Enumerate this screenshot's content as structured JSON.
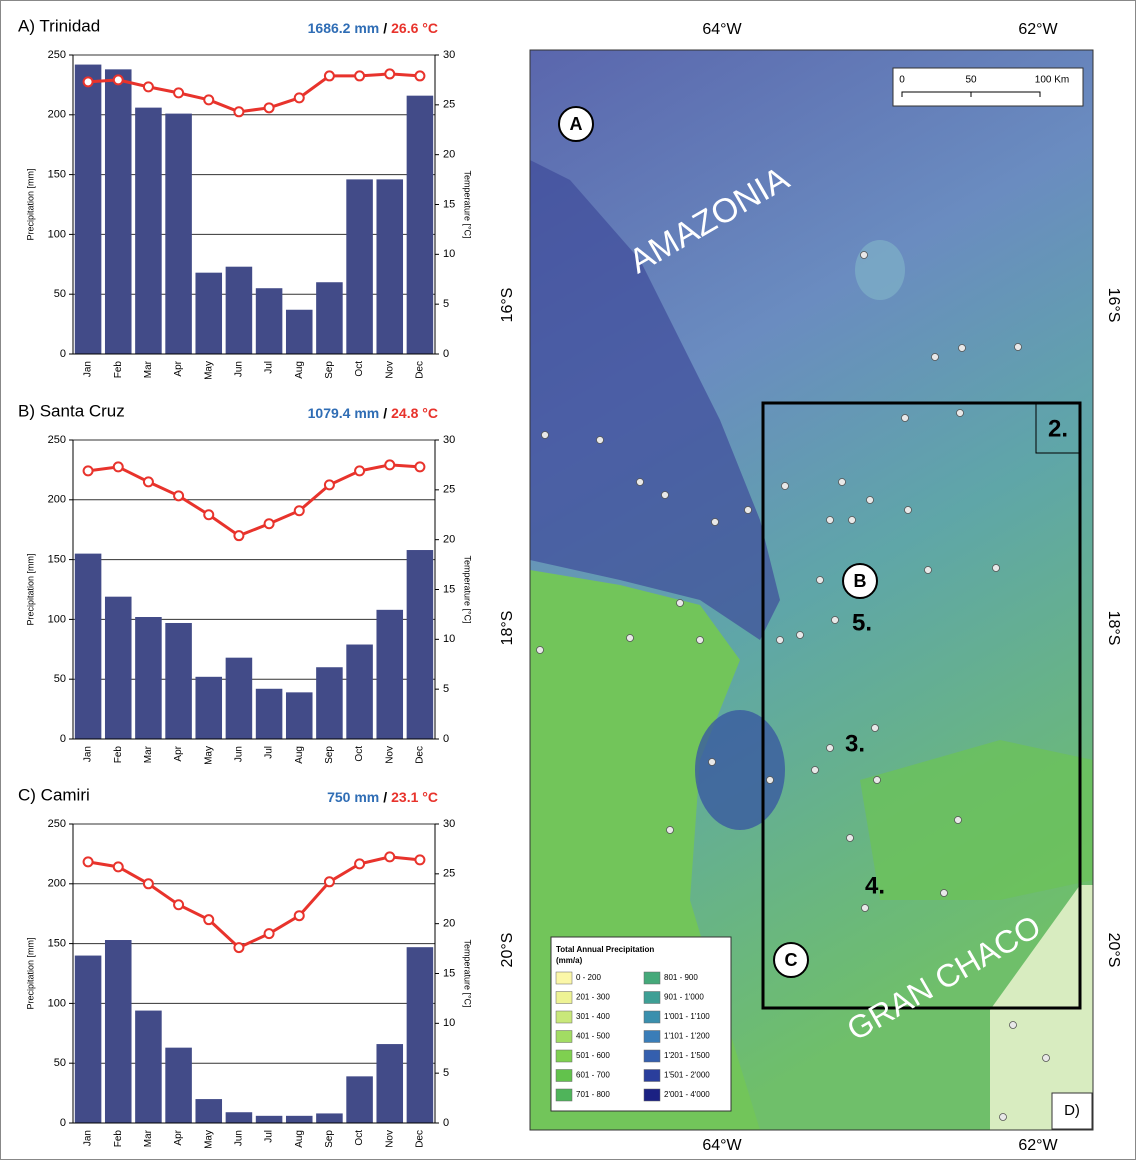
{
  "chart_data": [
    {
      "type": "bar-line",
      "title": "A) Trinidad",
      "annotation": {
        "precipitation": "1686.2 mm",
        "separator": "/",
        "temperature": "26.6 °C"
      },
      "ylabel": "Precipitation [mm]",
      "y2label": "Temperature [°C]",
      "categories": [
        "Jan",
        "Feb",
        "Mar",
        "Apr",
        "May",
        "Jun",
        "Jul",
        "Aug",
        "Sep",
        "Oct",
        "Nov",
        "Dec"
      ],
      "series": [
        {
          "type": "bar",
          "color": "#424b88",
          "values": [
            242,
            238,
            206,
            201,
            68,
            73,
            55,
            37,
            60,
            146,
            146,
            216
          ]
        },
        {
          "type": "line",
          "axis": "y2",
          "color": "#e8332c",
          "values": [
            27.3,
            27.5,
            26.8,
            26.2,
            25.5,
            24.3,
            24.7,
            25.7,
            27.9,
            27.9,
            28.1,
            27.9
          ]
        }
      ],
      "ylim": [
        0,
        250
      ],
      "yticks": [
        0,
        50,
        100,
        150,
        200,
        250
      ],
      "y2lim": [
        0,
        30
      ],
      "y2ticks": [
        0,
        5,
        10,
        15,
        20,
        25,
        30
      ],
      "grid": true
    },
    {
      "type": "bar-line",
      "title": "B) Santa Cruz",
      "annotation": {
        "precipitation": "1079.4  mm",
        "separator": "/",
        "temperature": "24.8 °C"
      },
      "ylabel": "Precipitation [mm]",
      "y2label": "Temperature [°C]",
      "categories": [
        "Jan",
        "Feb",
        "Mar",
        "Apr",
        "May",
        "Jun",
        "Jul",
        "Aug",
        "Sep",
        "Oct",
        "Nov",
        "Dec"
      ],
      "series": [
        {
          "type": "bar",
          "color": "#424b88",
          "values": [
            155,
            119,
            102,
            97,
            52,
            68,
            42,
            39,
            60,
            79,
            108,
            158
          ]
        },
        {
          "type": "line",
          "axis": "y2",
          "color": "#e8332c",
          "values": [
            26.9,
            27.3,
            25.8,
            24.4,
            22.5,
            20.4,
            21.6,
            22.9,
            25.5,
            26.9,
            27.5,
            27.3
          ]
        }
      ],
      "ylim": [
        0,
        250
      ],
      "yticks": [
        0,
        50,
        100,
        150,
        200,
        250
      ],
      "y2lim": [
        0,
        30
      ],
      "y2ticks": [
        0,
        5,
        10,
        15,
        20,
        25,
        30
      ],
      "grid": true
    },
    {
      "type": "bar-line",
      "title": "C) Camiri",
      "annotation": {
        "precipitation": "750 mm",
        "separator": "/",
        "temperature": "23.1 °C"
      },
      "ylabel": "Precipitation [mm]",
      "y2label": "Temperature [°C]",
      "categories": [
        "Jan",
        "Feb",
        "Mar",
        "Apr",
        "May",
        "Jun",
        "Jul",
        "Aug",
        "Sep",
        "Oct",
        "Nov",
        "Dec"
      ],
      "series": [
        {
          "type": "bar",
          "color": "#424b88",
          "values": [
            140,
            153,
            94,
            63,
            20,
            9,
            6,
            6,
            8,
            39,
            66,
            147
          ]
        },
        {
          "type": "line",
          "axis": "y2",
          "color": "#e8332c",
          "values": [
            26.2,
            25.7,
            24.0,
            21.9,
            20.4,
            17.6,
            19.0,
            20.8,
            24.2,
            26.0,
            26.7,
            26.4
          ]
        }
      ],
      "ylim": [
        0,
        250
      ],
      "yticks": [
        0,
        50,
        100,
        150,
        200,
        250
      ],
      "y2lim": [
        0,
        30
      ],
      "y2ticks": [
        0,
        5,
        10,
        15,
        20,
        25,
        30
      ],
      "grid": true
    }
  ],
  "map": {
    "lon_labels": [
      "64°W",
      "62°W"
    ],
    "lat_labels": [
      "16°S",
      "18°S",
      "20°S"
    ],
    "regions": [
      "AMAZONIA",
      "GRAN CHACO"
    ],
    "sites": [
      "A",
      "B",
      "C"
    ],
    "zones": [
      "2.",
      "3.",
      "4.",
      "5."
    ],
    "panel": "D)",
    "scale": [
      "0",
      "50",
      "100 Km"
    ],
    "legend": {
      "title": "Total Annual Precipitation",
      "unit": "(mm/a)",
      "items": [
        {
          "label": "0 - 200",
          "color": "#fbf7a8"
        },
        {
          "label": "201 - 300",
          "color": "#eef394"
        },
        {
          "label": "301 - 400",
          "color": "#c9e87a"
        },
        {
          "label": "401 - 500",
          "color": "#a2dc63"
        },
        {
          "label": "501 - 600",
          "color": "#7fd050"
        },
        {
          "label": "601 - 700",
          "color": "#62c24c"
        },
        {
          "label": "701 - 800",
          "color": "#4fb45a"
        },
        {
          "label": "801 - 900",
          "color": "#45a97a"
        },
        {
          "label": "901 - 1'000",
          "color": "#3e9f95"
        },
        {
          "label": "1'001 - 1'100",
          "color": "#3a8fad"
        },
        {
          "label": "1'101 - 1'200",
          "color": "#3a7db8"
        },
        {
          "label": "1'201 - 1'500",
          "color": "#345fae"
        },
        {
          "label": "1'501 - 2'000",
          "color": "#2a3e9c"
        },
        {
          "label": "2'001 - 4'000",
          "color": "#1b2183"
        }
      ]
    }
  }
}
